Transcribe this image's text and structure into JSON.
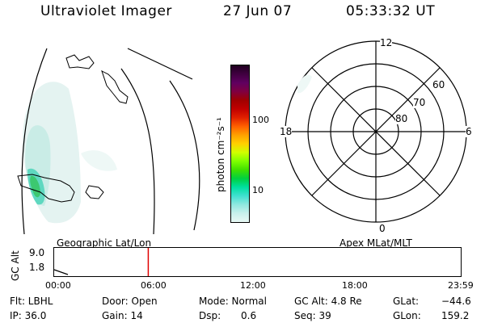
{
  "header": {
    "title": "Ultraviolet Imager",
    "date": "27 Jun 07",
    "time": "05:33:32 UT"
  },
  "colorbar": {
    "unit_label": "photon cm⁻²s⁻¹",
    "ticks": [
      "100",
      "10"
    ],
    "colors": [
      "#200020",
      "#400040",
      "#600060",
      "#800040",
      "#a00000",
      "#c00000",
      "#e02000",
      "#ff6000",
      "#ffa000",
      "#ffd000",
      "#d0ff00",
      "#80ff00",
      "#40e000",
      "#00d040",
      "#00e0a0",
      "#40e0d0",
      "#90e8e0",
      "#c8f0ec",
      "#e8f8f4"
    ]
  },
  "map_labels": {
    "left_title": "Geographic Lat/Lon",
    "right_title": "Apex MLat/MLT"
  },
  "polar": {
    "mlt_labels": {
      "top": "12",
      "bottom": "0",
      "left": "18",
      "right": "6"
    },
    "lat_labels": [
      "60",
      "70",
      "80"
    ]
  },
  "timeline": {
    "ylabel": "GC Alt",
    "y_ticks": [
      "9.0",
      "1.8"
    ],
    "x_ticks": [
      "00:00",
      "06:00",
      "12:00",
      "18:00",
      "23:59"
    ],
    "current_time_fraction": 0.231
  },
  "info": {
    "flt": "Flt: LBHL",
    "ip": "IP: 36.0",
    "door": "Door: Open",
    "gain": "Gain: 14",
    "mode": "Mode: Normal",
    "dsp_label": "Dsp:",
    "dsp_value": "0.6",
    "gcalt": "GC Alt: 4.8 Re",
    "seq": "Seq: 39",
    "glat_label": "GLat:",
    "glat_value": "−44.6",
    "glon_label": "GLon:",
    "glon_value": "159.2"
  }
}
